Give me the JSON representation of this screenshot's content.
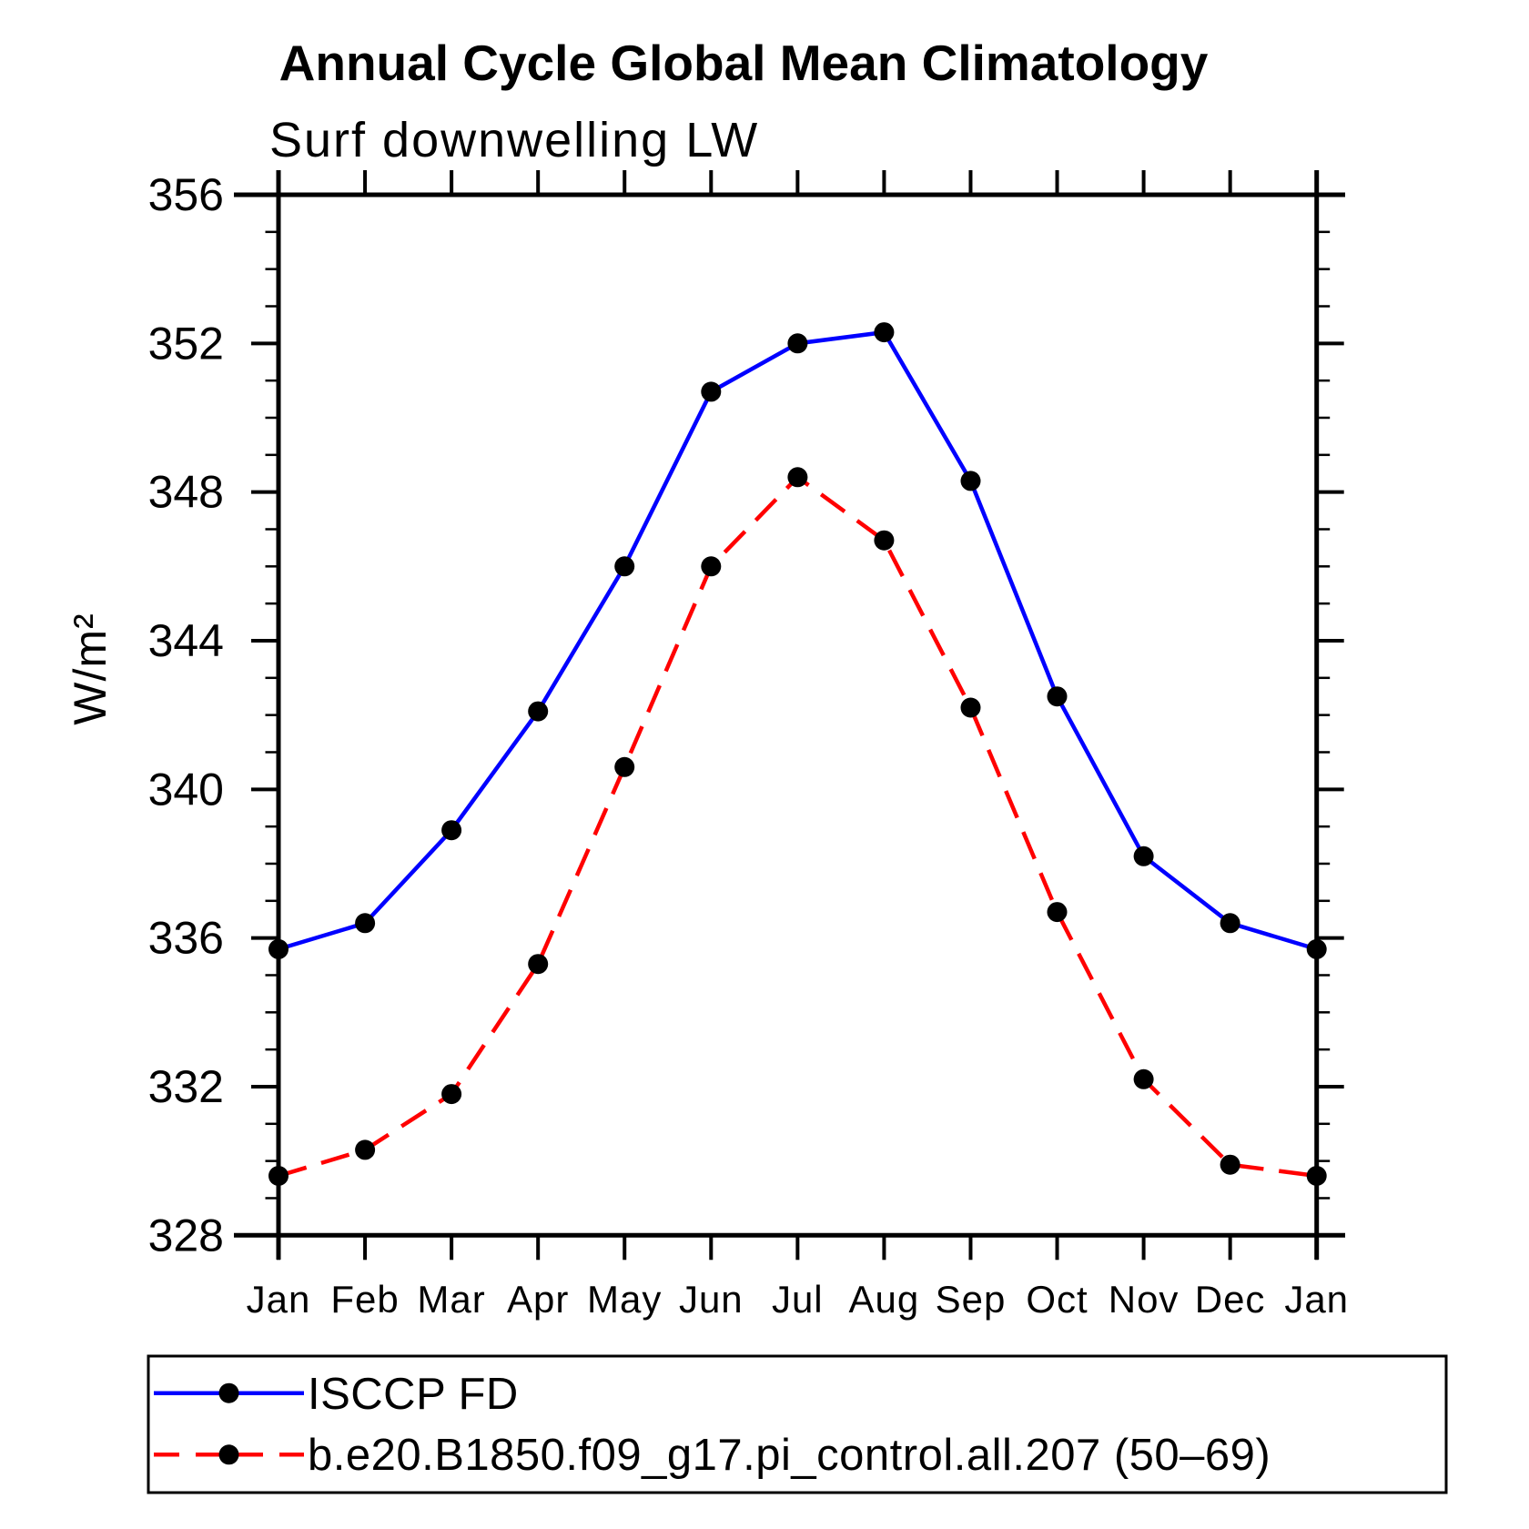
{
  "title": "Annual Cycle Global Mean Climatology",
  "subtitle": "Surf downwelling LW",
  "chart_data": {
    "type": "line",
    "categories": [
      "Jan",
      "Feb",
      "Mar",
      "Apr",
      "May",
      "Jun",
      "Jul",
      "Aug",
      "Sep",
      "Oct",
      "Nov",
      "Dec",
      "Jan"
    ],
    "ylabel": "W/m²",
    "ylim": [
      328,
      356
    ],
    "y_major_step": 4,
    "y_minor_step": 1,
    "y_tick_labels": [
      "356",
      "352",
      "348",
      "344",
      "340",
      "336",
      "332",
      "328"
    ],
    "grid": false,
    "legend_position": "bottom",
    "series": [
      {
        "name": "ISCCP FD",
        "color": "#0000ff",
        "line_style": "solid",
        "marker": "filled-circle",
        "marker_color": "#000000",
        "values": [
          335.7,
          336.4,
          338.9,
          342.1,
          346.0,
          350.7,
          352.0,
          352.3,
          348.3,
          342.5,
          338.2,
          336.4,
          335.7
        ]
      },
      {
        "name": "b.e20.B1850.f09_g17.pi_control.all.207 (50–69)",
        "color": "#ff0000",
        "line_style": "dashed",
        "marker": "filled-circle",
        "marker_color": "#000000",
        "values": [
          329.6,
          330.3,
          331.8,
          335.3,
          340.6,
          346.0,
          348.4,
          346.7,
          342.2,
          336.7,
          332.2,
          329.9,
          329.6
        ]
      }
    ]
  }
}
